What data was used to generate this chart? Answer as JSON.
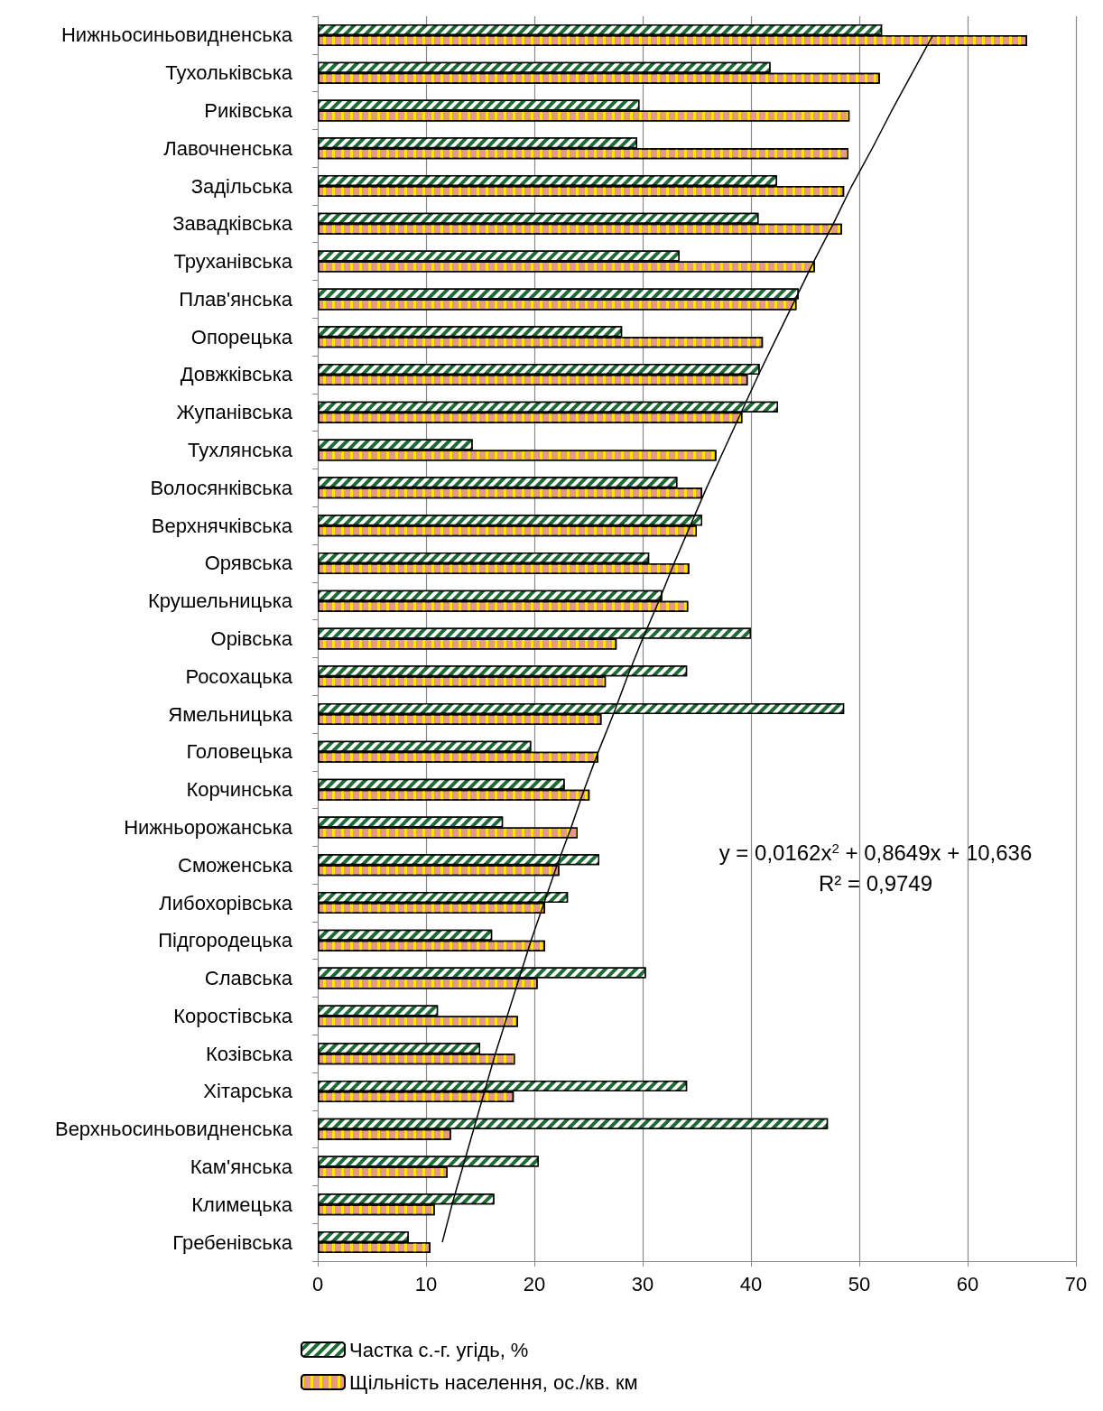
{
  "chart_data": {
    "type": "bar",
    "orientation": "horizontal",
    "categories": [
      "Нижньосиньовидненська",
      "Тухольківська",
      "Риківська",
      "Лавочненська",
      "Задільська",
      "Завадківська",
      "Труханівська",
      "Плав'янська",
      "Опорецька",
      "Довжківська",
      "Жупанівська",
      "Тухлянська",
      "Волосянківська",
      "Верхнячківська",
      "Орявська",
      "Крушельницька",
      "Орівська",
      "Росохацька",
      "Ямельницька",
      "Головецька",
      "Корчинська",
      "Нижньорожанська",
      "Сможенська",
      "Либохорівська",
      "Підгородецька",
      "Славська",
      "Коростівська",
      "Козівська",
      "Хітарська",
      "Верхньосиньовидненська",
      "Кам'янська",
      "Климецька",
      "Гребенівська"
    ],
    "series": [
      {
        "name": "Частка с.-г. угідь, %",
        "color": "#1e6b35",
        "values": [
          52.1,
          41.8,
          29.7,
          29.5,
          42.4,
          40.7,
          33.4,
          44.4,
          28.1,
          40.8,
          42.5,
          14.3,
          33.2,
          35.5,
          30.6,
          31.8,
          40.0,
          34.1,
          48.6,
          19.7,
          22.8,
          17.1,
          26.0,
          23.1,
          16.1,
          30.3,
          11.1,
          15.0,
          34.1,
          47.1,
          20.4,
          16.3,
          8.4
        ]
      },
      {
        "name": "Щільність населення, ос./кв. км",
        "color": "#e6998a",
        "values": [
          65.5,
          51.9,
          49.1,
          49.0,
          48.6,
          48.4,
          45.9,
          44.2,
          41.1,
          39.7,
          39.2,
          36.8,
          35.5,
          35.0,
          34.3,
          34.2,
          27.6,
          26.6,
          26.2,
          25.9,
          25.1,
          24.0,
          22.3,
          21.0,
          21.0,
          20.3,
          18.5,
          18.2,
          18.1,
          12.3,
          12.0,
          10.8,
          10.4
        ]
      },
      {
        "type": "line",
        "color": "#000000",
        "marker": "none",
        "values": [
          56.8,
          54.9,
          53.0,
          51.2,
          49.3,
          47.6,
          45.8,
          44.1,
          42.4,
          40.7,
          39.1,
          37.5,
          35.9,
          34.4,
          32.9,
          31.5,
          30.0,
          28.6,
          27.3,
          25.9,
          24.6,
          23.4,
          22.1,
          20.9,
          19.7,
          18.6,
          17.5,
          16.4,
          15.4,
          14.4,
          13.4,
          12.4,
          11.5
        ]
      }
    ],
    "xlim": [
      0,
      70
    ],
    "xticks": [
      0,
      10,
      20,
      30,
      40,
      50,
      60,
      70
    ],
    "grid": "x",
    "legend": "bottom",
    "annotations": [
      "y = 0,0162x$^{2}$ + 0,8649x + 10,636",
      "R² = 0,9749"
    ]
  }
}
